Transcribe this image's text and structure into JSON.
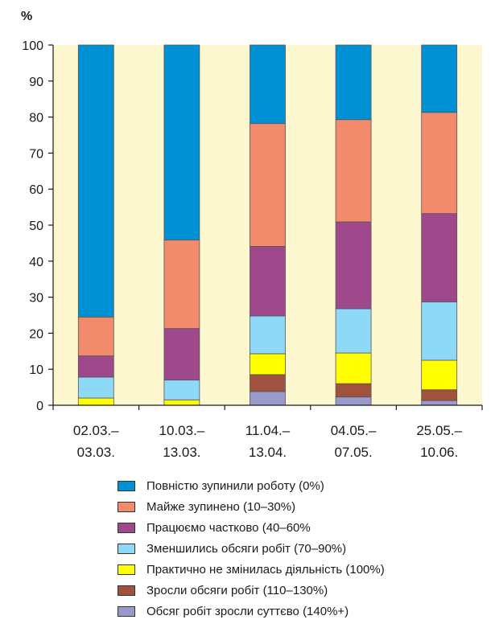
{
  "chart_data": {
    "type": "bar",
    "stacked": true,
    "unit_label": "%",
    "ylim": [
      0,
      100
    ],
    "yticks": [
      0,
      10,
      20,
      30,
      40,
      50,
      60,
      70,
      80,
      90,
      100
    ],
    "grid": "vertical",
    "legend_position": "bottom",
    "categories": [
      {
        "line1": "02.03.–",
        "line2": "03.03."
      },
      {
        "line1": "10.03.–",
        "line2": "13.03."
      },
      {
        "line1": "11.04.–",
        "line2": "13.04."
      },
      {
        "line1": "04.05.–",
        "line2": "07.05."
      },
      {
        "line1": "25.05.–",
        "line2": "10.06."
      }
    ],
    "series": [
      {
        "name": "Обсяг робіт зросли суттєво (140%+)",
        "color": "#9999cc",
        "values": [
          0,
          0,
          3.8,
          2.3,
          1.3
        ]
      },
      {
        "name": "Зросли обсяги робіт (110–130%)",
        "color": "#a0523d",
        "values": [
          0,
          0,
          4.7,
          3.7,
          3.0
        ]
      },
      {
        "name": "Практично не змінилась діяльність (100%)",
        "color": "#ffff00",
        "values": [
          2.0,
          1.5,
          5.8,
          8.5,
          8.2
        ]
      },
      {
        "name": "Зменшились обсяги робіт (70–90%)",
        "color": "#8ed8f8",
        "values": [
          5.8,
          5.5,
          10.5,
          12.3,
          16.2
        ]
      },
      {
        "name": "Працюємо частково (40–60%",
        "color": "#a0488c",
        "values": [
          5.9,
          14.3,
          19.3,
          24.1,
          24.5
        ]
      },
      {
        "name": "Майже зупинено (10–30%)",
        "color": "#f28b6c",
        "values": [
          10.8,
          24.6,
          34.1,
          28.4,
          28.1
        ]
      },
      {
        "name": "Повністю зупинили роботу (0%)",
        "color": "#0091d5",
        "values": [
          75.5,
          54.1,
          21.8,
          20.7,
          18.7
        ]
      }
    ]
  },
  "colors": {
    "plot_background": "#fdf7cf",
    "grid": "#9a9a9a"
  }
}
